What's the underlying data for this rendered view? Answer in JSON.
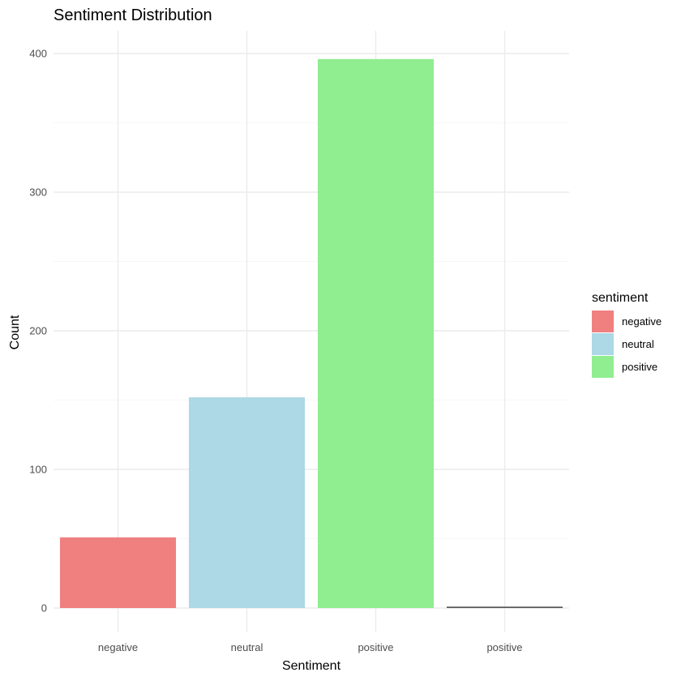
{
  "chart_data": {
    "type": "bar",
    "title": "Sentiment Distribution",
    "xlabel": "Sentiment",
    "ylabel": "Count",
    "categories": [
      "negative",
      "neutral",
      "positive",
      "positive"
    ],
    "values": [
      51,
      152,
      396,
      1
    ],
    "bar_colors": [
      "#f08080",
      "#add8e6",
      "#90ee90",
      "#595959"
    ],
    "ylim": [
      0,
      420
    ],
    "yticks": [
      0,
      100,
      200,
      300,
      400
    ],
    "grid": true,
    "legend": {
      "title": "sentiment",
      "placement": "right",
      "entries": [
        {
          "label": "negative",
          "color": "#f08080"
        },
        {
          "label": "neutral",
          "color": "#add8e6"
        },
        {
          "label": "positive",
          "color": "#90ee90"
        }
      ]
    }
  }
}
